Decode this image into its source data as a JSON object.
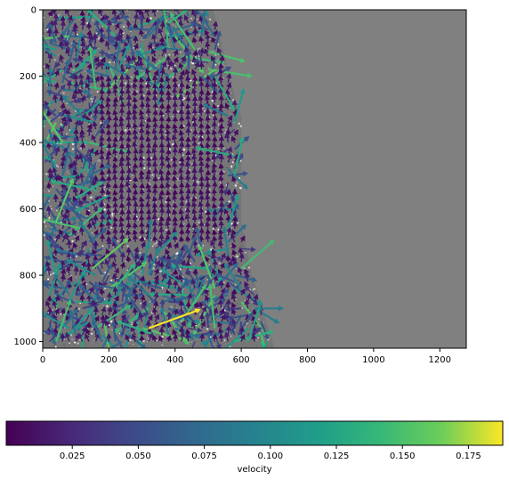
{
  "chart_data": [
    {
      "type": "quiver",
      "background": "grayscale particle image (right region uniform gray)",
      "xlim": [
        0,
        1280
      ],
      "ylim": [
        1020,
        0
      ],
      "y_inverted": true,
      "xticks": [
        0,
        200,
        400,
        600,
        800,
        1000,
        1200
      ],
      "yticks": [
        0,
        200,
        400,
        600,
        800,
        1000
      ],
      "grid": false,
      "colormap": "viridis",
      "arrow_grid_spacing": 20,
      "color_range": [
        0.0,
        0.188
      ],
      "features": [
        {
          "x": 320,
          "y": 960,
          "velocity": 0.188,
          "direction_deg": 20
        },
        {
          "x": 520,
          "y": 200,
          "velocity": 0.13,
          "direction_deg": 300
        },
        {
          "x": 380,
          "y": 40,
          "velocity": 0.14,
          "direction_deg": 35
        },
        {
          "x": 200,
          "y": 560,
          "velocity": 0.12,
          "direction_deg": 205
        },
        {
          "x": 150,
          "y": 780,
          "velocity": 0.16,
          "direction_deg": 40
        },
        {
          "x": 640,
          "y": 900,
          "velocity": 0.09,
          "direction_deg": 0
        }
      ]
    },
    {
      "type": "colorbar",
      "orientation": "horizontal",
      "colormap": "viridis",
      "range": [
        0.0,
        0.188
      ],
      "ticks": [
        "0.025",
        "0.050",
        "0.075",
        "0.100",
        "0.125",
        "0.150",
        "0.175"
      ],
      "tick_values": [
        0.025,
        0.05,
        0.075,
        0.1,
        0.125,
        0.15,
        0.175
      ],
      "label": "velocity"
    }
  ],
  "colors": {
    "viridis_stops": [
      "#440154",
      "#3b528b",
      "#21918c",
      "#5ec962",
      "#fde725"
    ],
    "background_gray": "#808080"
  }
}
